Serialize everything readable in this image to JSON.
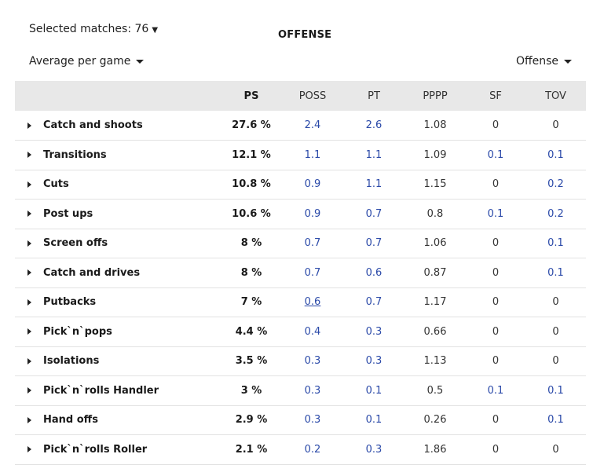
{
  "header": {
    "selected_matches": "Selected matches: 76",
    "title": "OFFENSE",
    "average_select": "Average per game",
    "offense_select": "Offense"
  },
  "table": {
    "columns": [
      "PS",
      "POSS",
      "PT",
      "PPPP",
      "SF",
      "TOV"
    ],
    "rows": [
      {
        "name": "Catch and shoots",
        "ps": "27.6 %",
        "poss": "2.4",
        "pt": "2.6",
        "pppp": "1.08",
        "sf": "0",
        "tov": "0"
      },
      {
        "name": "Transitions",
        "ps": "12.1 %",
        "poss": "1.1",
        "pt": "1.1",
        "pppp": "1.09",
        "sf": "0.1",
        "tov": "0.1"
      },
      {
        "name": "Cuts",
        "ps": "10.8 %",
        "poss": "0.9",
        "pt": "1.1",
        "pppp": "1.15",
        "sf": "0",
        "tov": "0.2"
      },
      {
        "name": "Post ups",
        "ps": "10.6 %",
        "poss": "0.9",
        "pt": "0.7",
        "pppp": "0.8",
        "sf": "0.1",
        "tov": "0.2"
      },
      {
        "name": "Screen offs",
        "ps": "8 %",
        "poss": "0.7",
        "pt": "0.7",
        "pppp": "1.06",
        "sf": "0",
        "tov": "0.1"
      },
      {
        "name": "Catch and drives",
        "ps": "8 %",
        "poss": "0.7",
        "pt": "0.6",
        "pppp": "0.87",
        "sf": "0",
        "tov": "0.1"
      },
      {
        "name": "Putbacks",
        "ps": "7 %",
        "poss": "0.6",
        "pt": "0.7",
        "pppp": "1.17",
        "sf": "0",
        "tov": "0"
      },
      {
        "name": "Pick`n`pops",
        "ps": "4.4 %",
        "poss": "0.4",
        "pt": "0.3",
        "pppp": "0.66",
        "sf": "0",
        "tov": "0"
      },
      {
        "name": "Isolations",
        "ps": "3.5 %",
        "poss": "0.3",
        "pt": "0.3",
        "pppp": "1.13",
        "sf": "0",
        "tov": "0"
      },
      {
        "name": "Pick`n`rolls Handler",
        "ps": "3 %",
        "poss": "0.3",
        "pt": "0.1",
        "pppp": "0.5",
        "sf": "0.1",
        "tov": "0.1"
      },
      {
        "name": "Hand offs",
        "ps": "2.9 %",
        "poss": "0.3",
        "pt": "0.1",
        "pppp": "0.26",
        "sf": "0",
        "tov": "0.1"
      },
      {
        "name": "Pick`n`rolls Roller",
        "ps": "2.1 %",
        "poss": "0.2",
        "pt": "0.3",
        "pppp": "1.86",
        "sf": "0",
        "tov": "0"
      }
    ]
  },
  "colors": {
    "link": "#2a49a8",
    "header_bg": "#e8e8e8",
    "row_border": "#e2e2e2"
  }
}
